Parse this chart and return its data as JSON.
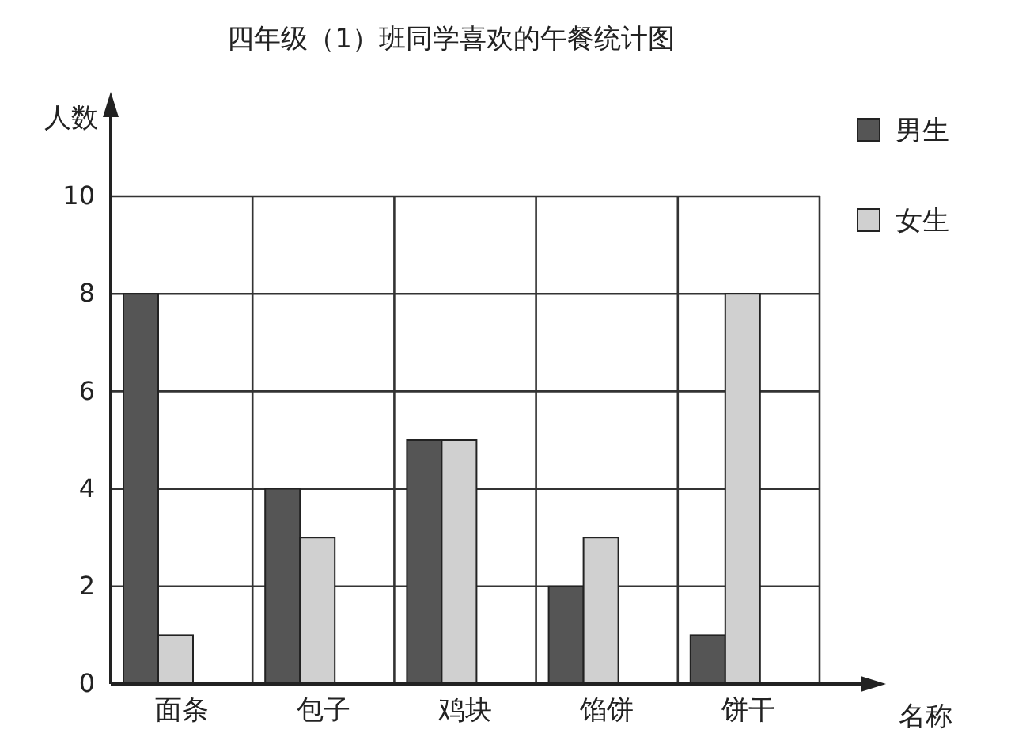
{
  "chart_data": {
    "type": "bar",
    "title": "四年级（1）班同学喜欢的午餐统计图",
    "xlabel": "名称",
    "ylabel": "人数",
    "categories": [
      "面条",
      "包子",
      "鸡块",
      "馅饼",
      "饼干"
    ],
    "series": [
      {
        "name": "男生",
        "color": "#555555",
        "values": [
          8,
          4,
          5,
          2,
          1
        ]
      },
      {
        "name": "女生",
        "color": "#d0d0d0",
        "values": [
          1,
          3,
          5,
          3,
          8
        ]
      }
    ],
    "ylim": [
      0,
      10
    ],
    "yticks": [
      0,
      2,
      4,
      6,
      8,
      10
    ],
    "grid": true,
    "legend": "right"
  }
}
